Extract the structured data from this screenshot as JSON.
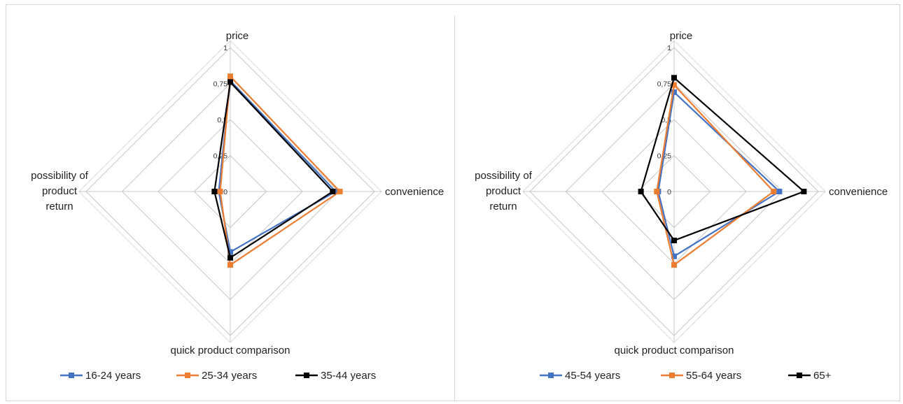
{
  "chart_data": [
    {
      "type": "radar",
      "axes": [
        "price",
        "convenience",
        "quick  product  comparison",
        "possibility of product return"
      ],
      "axis_label_lines": {
        "price": [
          "price"
        ],
        "convenience": [
          "convenience"
        ],
        "quick  product  comparison": [
          "quick  product  comparison"
        ],
        "possibility of product return": [
          "possibility of",
          "product",
          "return"
        ]
      },
      "ticks": [
        "0",
        "0,25",
        "0,5",
        "0,75",
        "1"
      ],
      "rlim": [
        0,
        1
      ],
      "grid": true,
      "legend_position": "bottom",
      "series": [
        {
          "name": "16-24 years",
          "color": "#4472c4",
          "values": [
            0.77,
            0.73,
            0.42,
            0.08
          ]
        },
        {
          "name": "25-34 years",
          "color": "#ed7d31",
          "values": [
            0.8,
            0.76,
            0.51,
            0.07
          ]
        },
        {
          "name": "35-44 years",
          "color": "#000000",
          "values": [
            0.76,
            0.71,
            0.46,
            0.11
          ]
        }
      ]
    },
    {
      "type": "radar",
      "axes": [
        "price",
        "convenience",
        "quick  product  comparison",
        "possibility of product return"
      ],
      "axis_label_lines": {
        "price": [
          "price"
        ],
        "convenience": [
          "convenience"
        ],
        "quick  product  comparison": [
          "quick  product  comparison"
        ],
        "possibility of product return": [
          "possibility of",
          "product",
          "return"
        ]
      },
      "ticks": [
        "0",
        "0,25",
        "0,5",
        "0,75",
        "1"
      ],
      "rlim": [
        0,
        1
      ],
      "grid": true,
      "legend_position": "bottom",
      "series": [
        {
          "name": "45-54 years",
          "color": "#4472c4",
          "values": [
            0.69,
            0.73,
            0.45,
            0.11
          ]
        },
        {
          "name": "55-64 years",
          "color": "#ed7d31",
          "values": [
            0.74,
            0.69,
            0.51,
            0.12
          ]
        },
        {
          "name": "65+",
          "color": "#000000",
          "values": [
            0.79,
            0.9,
            0.34,
            0.23
          ]
        }
      ]
    }
  ]
}
